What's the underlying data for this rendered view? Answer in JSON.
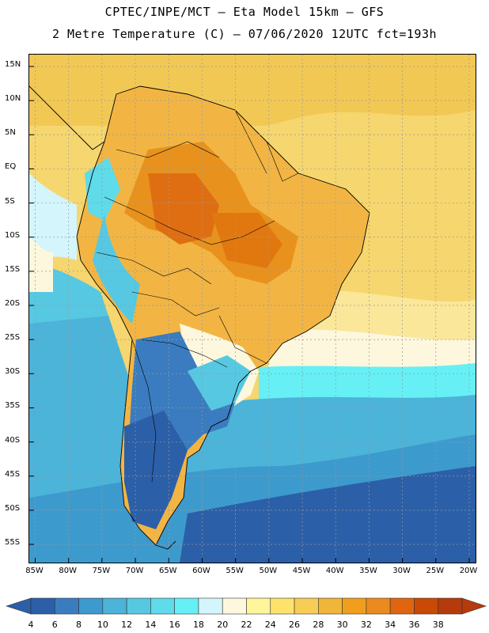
{
  "header": {
    "title_line1": "CPTEC/INPE/MCT –  Eta Model 15km – GFS",
    "title_line2": "2 Metre Temperature (C) – 07/06/2020 12UTC fct=193h"
  },
  "map": {
    "lat_labels": [
      "15N",
      "10N",
      "5N",
      "EQ",
      "5S",
      "10S",
      "15S",
      "20S",
      "25S",
      "30S",
      "35S",
      "40S",
      "45S",
      "50S",
      "55S"
    ],
    "lon_labels": [
      "85W",
      "80W",
      "75W",
      "70W",
      "65W",
      "60W",
      "55W",
      "50W",
      "45W",
      "40W",
      "35W",
      "30W",
      "25W",
      "20W"
    ],
    "lat_values": [
      15,
      10,
      5,
      0,
      -5,
      -10,
      -15,
      -20,
      -25,
      -30,
      -35,
      -40,
      -45,
      -50,
      -55
    ],
    "lon_values": [
      -85,
      -80,
      -75,
      -70,
      -65,
      -60,
      -55,
      -50,
      -45,
      -40,
      -35,
      -30,
      -25,
      -20
    ]
  },
  "colorbar": {
    "labels": [
      "4",
      "6",
      "8",
      "10",
      "12",
      "14",
      "16",
      "18",
      "20",
      "22",
      "24",
      "26",
      "28",
      "30",
      "32",
      "34",
      "36",
      "38"
    ],
    "colors": [
      "#2b5fa8",
      "#3a7cbf",
      "#3d9acd",
      "#4cb3d9",
      "#57c8e2",
      "#5fdbea",
      "#66f0f5",
      "#d4f5fb",
      "#fdf7de",
      "#fff59a",
      "#fde36a",
      "#f7cd55",
      "#f0b63a",
      "#f19e1c",
      "#ea8a1f",
      "#e1650f",
      "#c84a06",
      "#b53a0c"
    ]
  }
}
